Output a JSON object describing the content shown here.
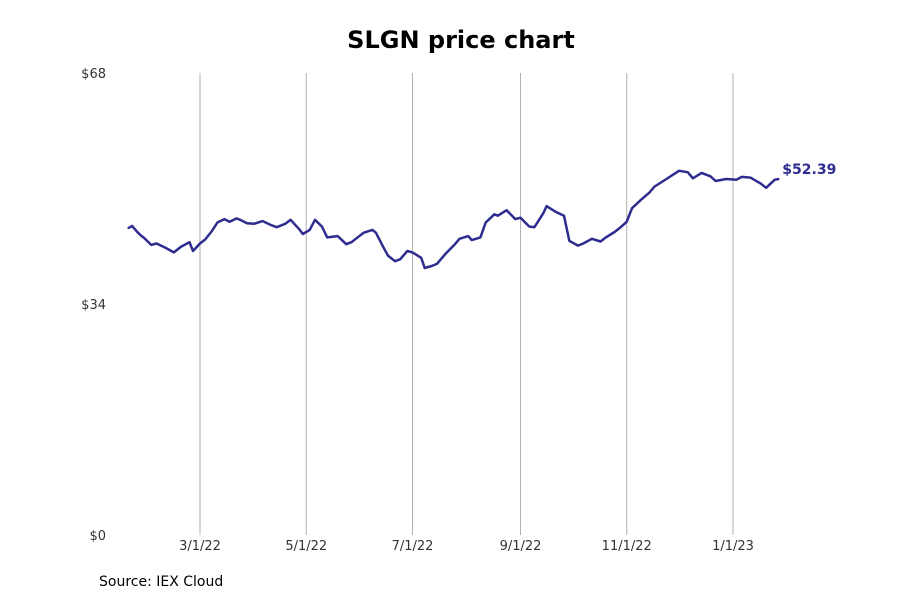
{
  "title": "SLGN price chart",
  "source": "Source: IEX Cloud",
  "chart_data": {
    "type": "line",
    "title": "SLGN price chart",
    "xlabel": "",
    "ylabel": "",
    "ylim": [
      0,
      68
    ],
    "y_ticks": [
      0,
      34,
      68
    ],
    "y_tick_labels": [
      "$0",
      "$34",
      "$68"
    ],
    "x_ticks": [
      "2022-03-01",
      "2022-05-01",
      "2022-07-01",
      "2022-09-01",
      "2022-11-01",
      "2023-01-01"
    ],
    "x_tick_labels": [
      "3/1/22",
      "5/1/22",
      "7/1/22",
      "9/1/22",
      "11/1/22",
      "1/1/23"
    ],
    "grid": "vertical",
    "line_color": "#2e2c8f",
    "end_label": "$52.39",
    "series": [
      {
        "name": "",
        "x": [
          "2022-01-19",
          "2022-01-21",
          "2022-01-24",
          "2022-01-26",
          "2022-01-28",
          "2022-02-01",
          "2022-02-04",
          "2022-02-09",
          "2022-02-14",
          "2022-02-18",
          "2022-02-23",
          "2022-02-25",
          "2022-03-01",
          "2022-03-04",
          "2022-03-08",
          "2022-03-11",
          "2022-03-15",
          "2022-03-18",
          "2022-03-22",
          "2022-03-24",
          "2022-03-28",
          "2022-04-01",
          "2022-04-06",
          "2022-04-11",
          "2022-04-14",
          "2022-04-19",
          "2022-04-22",
          "2022-04-27",
          "2022-04-29",
          "2022-05-03",
          "2022-05-06",
          "2022-05-10",
          "2022-05-13",
          "2022-05-16",
          "2022-05-19",
          "2022-05-24",
          "2022-05-27",
          "2022-05-31",
          "2022-06-03",
          "2022-06-08",
          "2022-06-10",
          "2022-06-14",
          "2022-06-17",
          "2022-06-21",
          "2022-06-24",
          "2022-06-28",
          "2022-07-01",
          "2022-07-06",
          "2022-07-08",
          "2022-07-12",
          "2022-07-15",
          "2022-07-20",
          "2022-07-25",
          "2022-07-28",
          "2022-08-02",
          "2022-08-04",
          "2022-08-09",
          "2022-08-12",
          "2022-08-17",
          "2022-08-19",
          "2022-08-24",
          "2022-08-29",
          "2022-09-01",
          "2022-09-06",
          "2022-09-09",
          "2022-09-14",
          "2022-09-16",
          "2022-09-21",
          "2022-09-26",
          "2022-09-29",
          "2022-10-04",
          "2022-10-07",
          "2022-10-12",
          "2022-10-17",
          "2022-10-20",
          "2022-10-25",
          "2022-10-28",
          "2022-11-01",
          "2022-11-04",
          "2022-11-09",
          "2022-11-14",
          "2022-11-17",
          "2022-11-22",
          "2022-11-28",
          "2022-12-01",
          "2022-12-06",
          "2022-12-09",
          "2022-12-14",
          "2022-12-19",
          "2022-12-22",
          "2022-12-28",
          "2023-01-03",
          "2023-01-06",
          "2023-01-11",
          "2023-01-17",
          "2023-01-20",
          "2023-01-25",
          "2023-01-27"
        ],
        "values": [
          45.2,
          45.5,
          44.6,
          44.1,
          43.7,
          42.7,
          42.9,
          42.3,
          41.6,
          42.4,
          43.1,
          41.8,
          42.9,
          43.5,
          44.8,
          46.0,
          46.5,
          46.1,
          46.6,
          46.4,
          45.9,
          45.8,
          46.2,
          45.6,
          45.3,
          45.8,
          46.4,
          45.0,
          44.3,
          44.9,
          46.4,
          45.4,
          43.8,
          43.9,
          44.0,
          42.8,
          43.1,
          43.9,
          44.5,
          44.9,
          44.5,
          42.5,
          41.1,
          40.3,
          40.6,
          41.8,
          41.6,
          40.8,
          39.3,
          39.6,
          39.9,
          41.4,
          42.7,
          43.6,
          44.0,
          43.4,
          43.8,
          46.0,
          47.2,
          47.0,
          47.8,
          46.5,
          46.7,
          45.4,
          45.3,
          47.3,
          48.4,
          47.6,
          47.0,
          43.3,
          42.6,
          42.9,
          43.6,
          43.2,
          43.8,
          44.6,
          45.2,
          46.1,
          48.1,
          49.3,
          50.4,
          51.3,
          52.1,
          53.1,
          53.6,
          53.4,
          52.5,
          53.3,
          52.8,
          52.1,
          52.4,
          52.3,
          52.7,
          52.6,
          51.7,
          51.1,
          52.3,
          52.39
        ]
      }
    ]
  }
}
